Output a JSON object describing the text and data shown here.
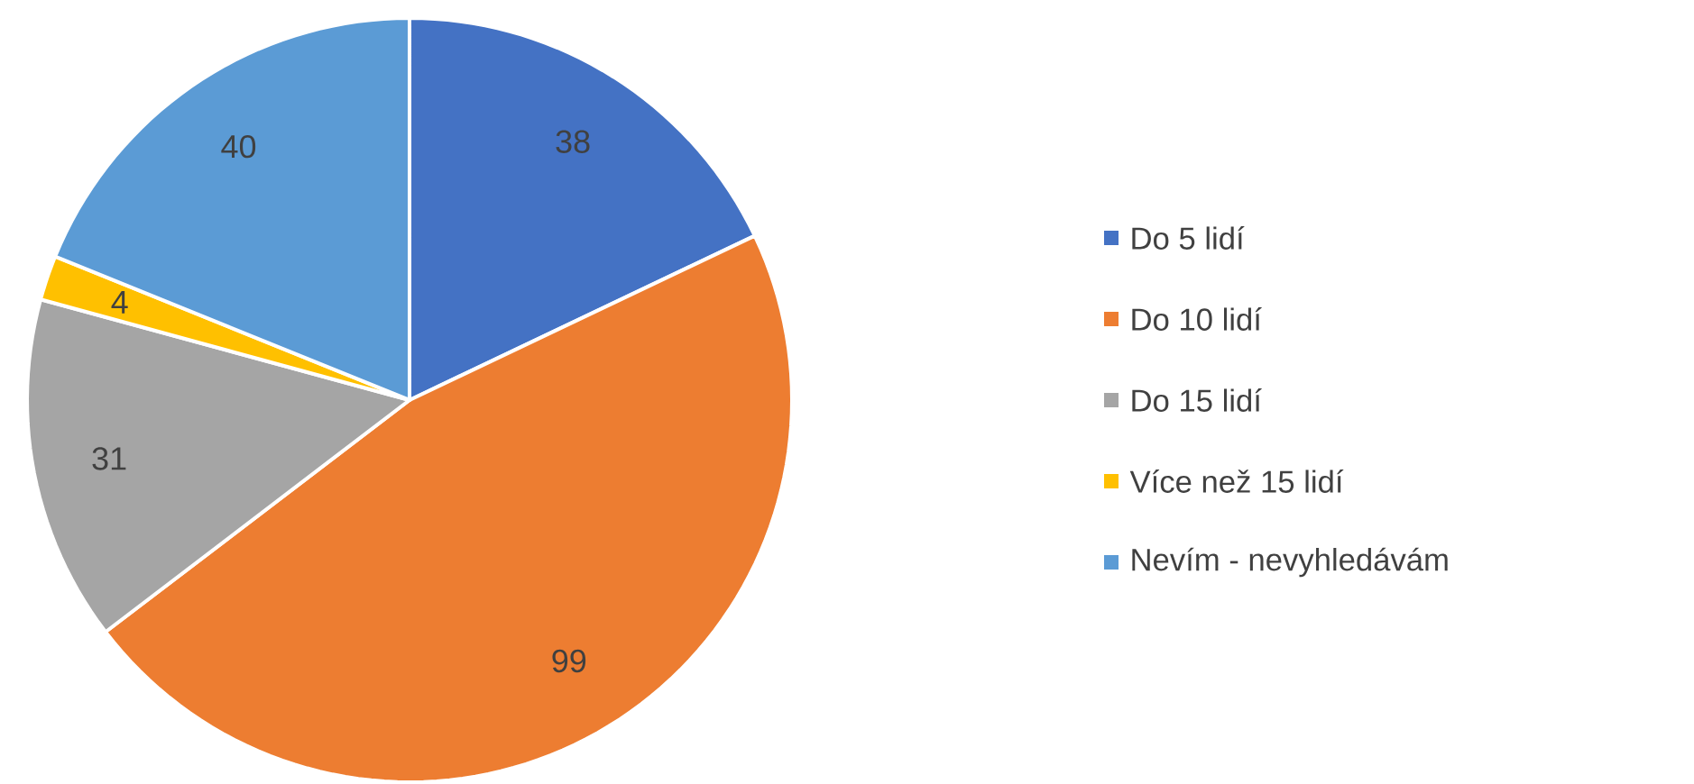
{
  "chart_data": {
    "type": "pie",
    "categories": [
      "Do 5 lidí",
      "Do 10 lidí",
      "Do 15 lidí",
      "Více než 15 lidí",
      "Nevím - nevyhledávám"
    ],
    "values": [
      38,
      99,
      31,
      4,
      40
    ],
    "colors": [
      "#4472c4",
      "#ed7d31",
      "#a5a5a5",
      "#ffc000",
      "#5b9bd5"
    ],
    "data_labels": true,
    "legend": "right"
  }
}
